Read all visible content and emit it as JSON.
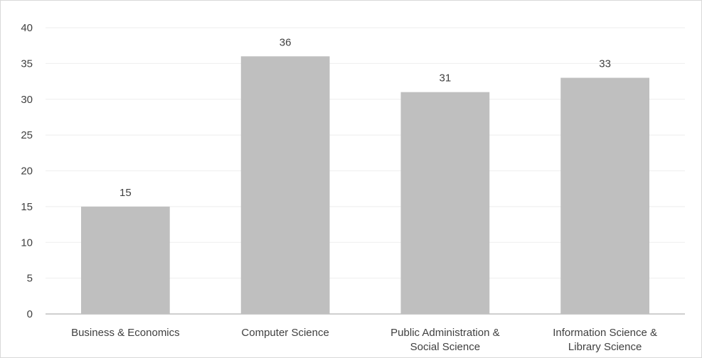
{
  "chart_data": {
    "type": "bar",
    "categories": [
      [
        "Business & Economics"
      ],
      [
        "Computer Science"
      ],
      [
        "Public Administration &",
        "Social Science"
      ],
      [
        "Information Science &",
        "Library Science"
      ]
    ],
    "values": [
      15,
      36,
      31,
      33
    ],
    "title": "",
    "xlabel": "",
    "ylabel": "",
    "ylim": [
      0,
      40
    ],
    "yticks": [
      0,
      5,
      10,
      15,
      20,
      25,
      30,
      35,
      40
    ],
    "grid": true,
    "legend": "none",
    "colors": {
      "bar": "#bfbfbf",
      "grid": "#eeeeee",
      "axis": "#bfbfbf",
      "text": "#404040"
    }
  }
}
